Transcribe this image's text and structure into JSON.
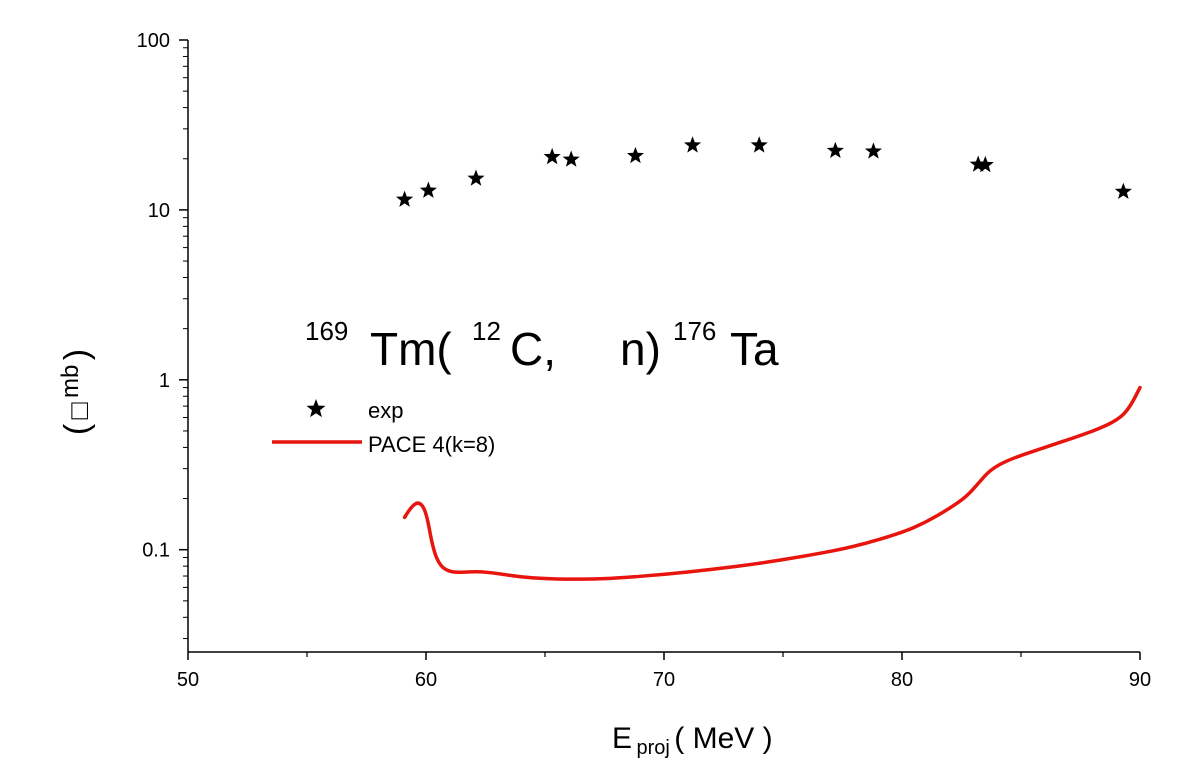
{
  "chart_data": {
    "type": "scatter",
    "title": "",
    "annotation": {
      "a1": "169",
      "el1": "Tm(",
      "a2": "12",
      "el2": "C,",
      "el3": "n)",
      "a3": "176",
      "el4": "Ta"
    },
    "xlabel": {
      "main": "E",
      "sub": "proj",
      "rest": "( MeV )"
    },
    "ylabel": {
      "open": "(",
      "symbol": "□",
      "unit": "mb",
      "close": ")"
    },
    "xlim": [
      50,
      90
    ],
    "ylim": [
      0.025,
      100
    ],
    "y_scale": "log",
    "x_ticks": [
      50,
      60,
      70,
      80,
      90
    ],
    "x_tick_labels": [
      "50",
      "60",
      "70",
      "80",
      "90"
    ],
    "y_ticks": [
      0.1,
      1,
      10,
      100
    ],
    "y_tick_labels": [
      "0.1",
      "1",
      "10",
      "100"
    ],
    "grid": false,
    "legend_position": "center-left",
    "series": [
      {
        "name": "exp",
        "kind": "scatter",
        "marker": "star",
        "color": "#000000",
        "x": [
          59.1,
          60.1,
          62.1,
          65.3,
          66.1,
          68.8,
          71.2,
          74.0,
          77.2,
          78.8,
          83.2,
          83.5,
          89.3
        ],
        "y": [
          11.5,
          13.0,
          15.3,
          20.5,
          19.8,
          20.8,
          24.0,
          24.0,
          22.3,
          22.1,
          18.5,
          18.4,
          12.8
        ]
      },
      {
        "name": "PACE 4(k=8)",
        "kind": "line",
        "color": "#e8140e",
        "x": [
          59.1,
          59.4,
          59.7,
          60.0,
          60.3,
          60.6,
          61.0,
          61.5,
          62.2,
          63.0,
          64.0,
          65.0,
          66.0,
          67.0,
          68.0,
          70.0,
          72.0,
          74.0,
          76.0,
          78.0,
          80.0,
          81.0,
          82.0,
          82.7,
          83.2,
          83.7,
          84.5,
          86.0,
          87.5,
          88.5,
          89.2,
          89.6,
          90.0
        ],
        "y": [
          0.155,
          0.18,
          0.192,
          0.17,
          0.1,
          0.08,
          0.074,
          0.0735,
          0.0745,
          0.0725,
          0.069,
          0.0675,
          0.067,
          0.0672,
          0.068,
          0.0715,
          0.0765,
          0.083,
          0.092,
          0.104,
          0.126,
          0.145,
          0.175,
          0.205,
          0.245,
          0.295,
          0.34,
          0.4,
          0.47,
          0.53,
          0.6,
          0.7,
          0.9
        ]
      }
    ]
  }
}
